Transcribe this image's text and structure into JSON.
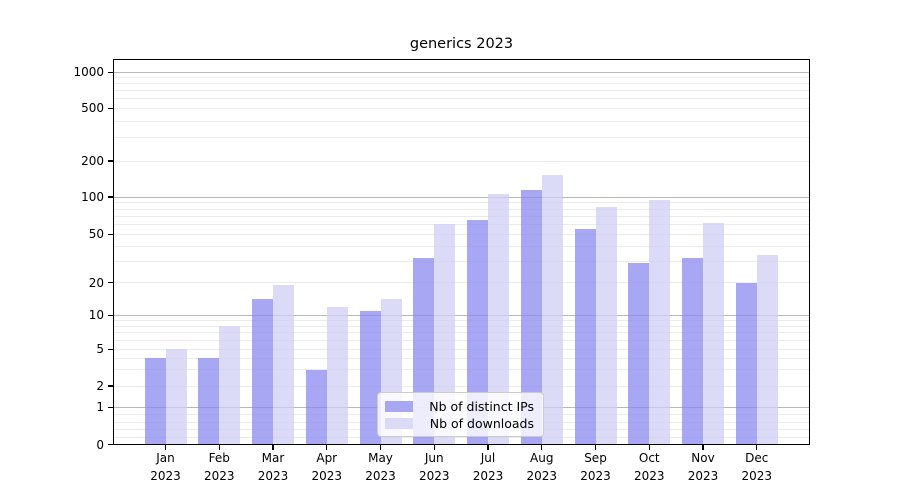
{
  "title": "generics 2023",
  "chart_data": {
    "type": "bar",
    "title": "generics 2023",
    "categories": [
      "Jan",
      "Feb",
      "Mar",
      "Apr",
      "May",
      "Jun",
      "Jul",
      "Aug",
      "Sep",
      "Oct",
      "Nov",
      "Dec"
    ],
    "x_year": "2023",
    "series": [
      {
        "name": "Nb of distinct IPs",
        "color": "#a7a7f4",
        "values": [
          4,
          4,
          14,
          3,
          11,
          32,
          65,
          115,
          55,
          29,
          32,
          20
        ]
      },
      {
        "name": "Nb of downloads",
        "color": "#dbdbf8",
        "values": [
          5,
          8,
          19,
          12,
          14,
          60,
          105,
          152,
          83,
          94,
          62,
          34
        ]
      }
    ],
    "y_ticks": [
      0,
      1,
      2,
      5,
      10,
      20,
      50,
      100,
      200,
      500,
      1000
    ],
    "y_minor_gridlines": [
      0.2,
      0.4,
      0.6,
      0.8,
      2,
      3,
      4,
      5,
      6,
      7,
      8,
      9,
      20,
      30,
      40,
      50,
      60,
      70,
      80,
      90,
      200,
      300,
      400,
      500,
      600,
      700,
      800,
      900
    ],
    "y_major_gridlines": [
      1,
      10,
      100,
      1000
    ],
    "yscale": "symlog",
    "ylim": [
      0,
      1400
    ],
    "grid": true,
    "legend_position": "lower center (inside axes)",
    "xlabel": "",
    "ylabel": ""
  },
  "legend": {
    "items": [
      {
        "label": "Nb of distinct IPs"
      },
      {
        "label": "Nb of downloads"
      }
    ]
  },
  "colors": {
    "bar_distinct_ips": "#a7a7f4",
    "bar_downloads": "#dbdbf8",
    "grid_minor": "#ebebeb",
    "grid_major": "#b9b9b9",
    "axes": "#000000",
    "background": "#ffffff"
  }
}
